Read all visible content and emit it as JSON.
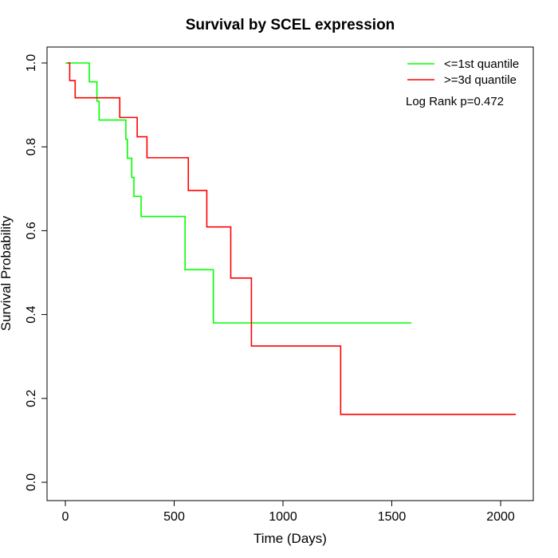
{
  "chart_data": {
    "type": "line",
    "title": "Survival by SCEL expression",
    "xlabel": "Time (Days)",
    "ylabel": "Survival Probability",
    "xlim": [
      0,
      2070
    ],
    "ylim": [
      0,
      1.0
    ],
    "x_ticks": [
      0,
      500,
      1000,
      1500,
      2000
    ],
    "x_tick_labels": [
      "0",
      "500",
      "1000",
      "1500",
      "2000"
    ],
    "y_ticks": [
      0.0,
      0.2,
      0.4,
      0.6,
      0.8,
      1.0
    ],
    "y_tick_labels": [
      "0.0",
      "0.2",
      "0.4",
      "0.6",
      "0.8",
      "1.0"
    ],
    "grid": false,
    "legend_position": "top-right",
    "annotation": "Log Rank p=0.472",
    "series": [
      {
        "name": "<=1st quantile",
        "color": "#00ff00",
        "step": true,
        "x": [
          0,
          110,
          145,
          155,
          278,
          285,
          305,
          315,
          348,
          550,
          680,
          1590
        ],
        "y": [
          1.0,
          0.955,
          0.909,
          0.864,
          0.818,
          0.773,
          0.727,
          0.682,
          0.634,
          0.507,
          0.38,
          0.38
        ]
      },
      {
        "name": ">=3d quantile",
        "color": "#ff0000",
        "step": true,
        "x": [
          10,
          20,
          45,
          250,
          330,
          375,
          565,
          650,
          760,
          855,
          1265,
          2070
        ],
        "y": [
          1.0,
          0.958,
          0.917,
          0.87,
          0.824,
          0.774,
          0.696,
          0.609,
          0.487,
          0.325,
          0.162,
          0.162
        ]
      }
    ]
  }
}
